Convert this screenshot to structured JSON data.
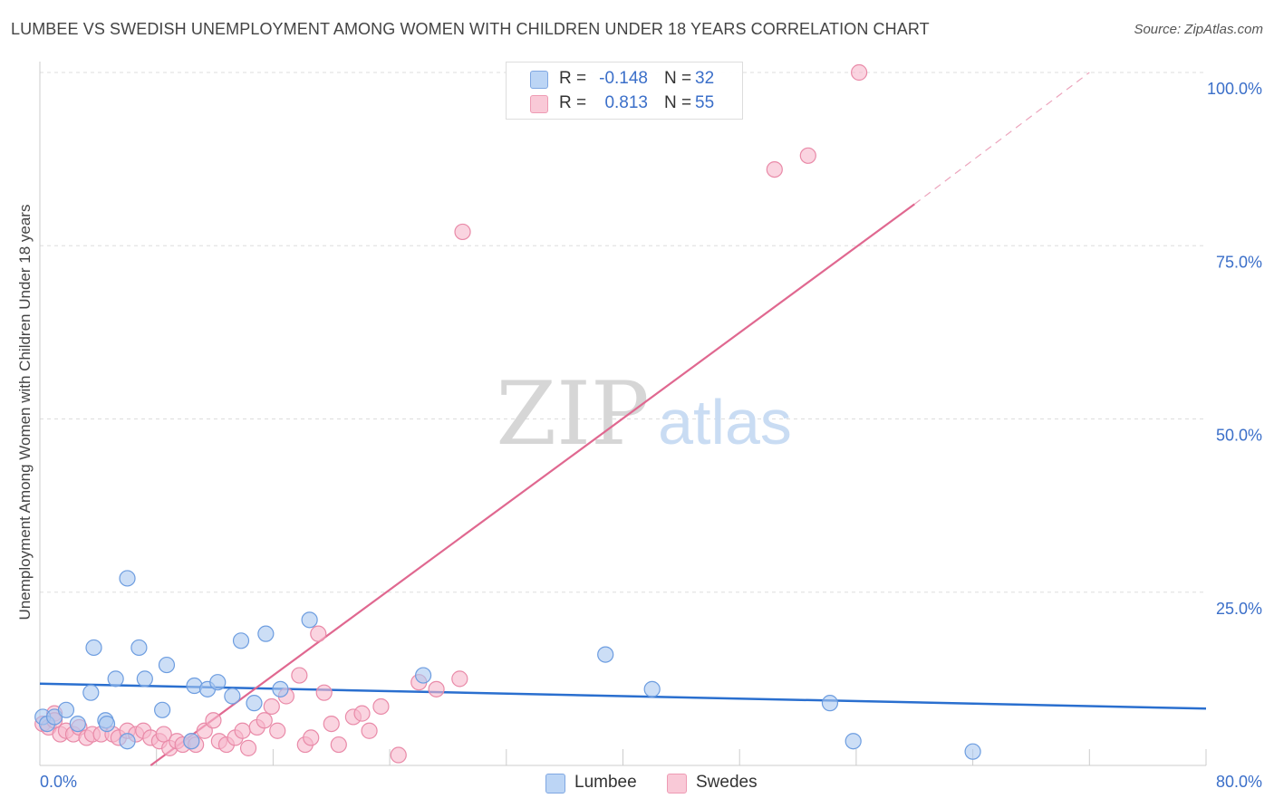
{
  "header": {
    "title": "LUMBEE VS SWEDISH UNEMPLOYMENT AMONG WOMEN WITH CHILDREN UNDER 18 YEARS CORRELATION CHART",
    "source": "Source: ZipAtlas.com"
  },
  "watermark": {
    "zip": "ZIP",
    "atlas": "atlas"
  },
  "legend": {
    "rows": [
      {
        "r_label": "R =",
        "r_value": "-0.148",
        "n_label": "N =",
        "n_value": "32",
        "color": "#aac8f0"
      },
      {
        "r_label": "R =",
        "r_value": "0.813",
        "n_label": "N =",
        "n_value": "55",
        "color": "#f7b8cb"
      }
    ]
  },
  "bottom_legend": {
    "lumbee": "Lumbee",
    "swedes": "Swedes"
  },
  "colors": {
    "lumbee_fill": "#aac8f0",
    "lumbee_stroke": "#6d9de0",
    "lumbee_line": "#2a6fcf",
    "swedes_fill": "#f7b8cb",
    "swedes_stroke": "#e98aa8",
    "swedes_line": "#e06890",
    "axis_text": "#3b6fc9",
    "grid": "#dddddd"
  },
  "chart_data": {
    "type": "scatter",
    "title": "LUMBEE VS SWEDISH UNEMPLOYMENT AMONG WOMEN WITH CHILDREN UNDER 18 YEARS CORRELATION CHART",
    "xlabel": "",
    "ylabel": "Unemployment Among Women with Children Under 18 years",
    "xlim": [
      0,
      80
    ],
    "ylim": [
      0,
      100
    ],
    "x_tick_labels": [
      "0.0%",
      "80.0%"
    ],
    "y_tick_labels": [
      "100.0%",
      "75.0%",
      "50.0%",
      "25.0%"
    ],
    "y_ticks": [
      100,
      75,
      50,
      25
    ],
    "x_gridlines": [
      0,
      8,
      16,
      24,
      32,
      40,
      48,
      56,
      64,
      72,
      80
    ],
    "grid": true,
    "legend_position": "top-center",
    "series": [
      {
        "name": "Lumbee",
        "points": [
          [
            0.2,
            7.0
          ],
          [
            0.5,
            6.0
          ],
          [
            1.0,
            7.0
          ],
          [
            1.8,
            8.0
          ],
          [
            2.6,
            6.0
          ],
          [
            3.5,
            10.5
          ],
          [
            3.7,
            17.0
          ],
          [
            4.5,
            6.5
          ],
          [
            4.6,
            6.0
          ],
          [
            5.2,
            12.5
          ],
          [
            6.0,
            27.0
          ],
          [
            6.8,
            17.0
          ],
          [
            7.2,
            12.5
          ],
          [
            8.4,
            8.0
          ],
          [
            8.7,
            14.5
          ],
          [
            10.6,
            11.5
          ],
          [
            11.5,
            11.0
          ],
          [
            12.2,
            12.0
          ],
          [
            13.2,
            10.0
          ],
          [
            13.8,
            18.0
          ],
          [
            14.7,
            9.0
          ],
          [
            15.5,
            19.0
          ],
          [
            16.5,
            11.0
          ],
          [
            18.5,
            21.0
          ],
          [
            26.3,
            13.0
          ],
          [
            38.8,
            16.0
          ],
          [
            42.0,
            11.0
          ],
          [
            54.2,
            9.0
          ],
          [
            55.8,
            3.5
          ],
          [
            64.0,
            2.0
          ],
          [
            10.4,
            3.5
          ],
          [
            6.0,
            3.5
          ]
        ],
        "trend": {
          "x": [
            0,
            80
          ],
          "y": [
            11.8,
            8.2
          ]
        }
      },
      {
        "name": "Swedes",
        "points": [
          [
            0.2,
            6.0
          ],
          [
            0.6,
            5.5
          ],
          [
            1.0,
            7.5
          ],
          [
            1.4,
            4.5
          ],
          [
            1.8,
            5.0
          ],
          [
            2.3,
            4.5
          ],
          [
            2.7,
            5.5
          ],
          [
            3.2,
            4.0
          ],
          [
            3.6,
            4.5
          ],
          [
            4.2,
            4.5
          ],
          [
            5.0,
            4.5
          ],
          [
            5.4,
            4.0
          ],
          [
            6.0,
            5.0
          ],
          [
            6.6,
            4.5
          ],
          [
            7.1,
            5.0
          ],
          [
            7.6,
            4.0
          ],
          [
            8.2,
            3.5
          ],
          [
            8.5,
            4.5
          ],
          [
            8.9,
            2.5
          ],
          [
            9.4,
            3.5
          ],
          [
            9.8,
            3.0
          ],
          [
            10.4,
            3.5
          ],
          [
            10.7,
            3.0
          ],
          [
            11.3,
            5.0
          ],
          [
            11.9,
            6.5
          ],
          [
            12.3,
            3.5
          ],
          [
            12.8,
            3.0
          ],
          [
            13.4,
            4.0
          ],
          [
            13.9,
            5.0
          ],
          [
            14.3,
            2.5
          ],
          [
            14.9,
            5.5
          ],
          [
            15.4,
            6.5
          ],
          [
            15.9,
            8.5
          ],
          [
            16.3,
            5.0
          ],
          [
            16.9,
            10.0
          ],
          [
            17.8,
            13.0
          ],
          [
            18.2,
            3.0
          ],
          [
            18.6,
            4.0
          ],
          [
            19.1,
            19.0
          ],
          [
            19.5,
            10.5
          ],
          [
            20.0,
            6.0
          ],
          [
            20.5,
            3.0
          ],
          [
            21.5,
            7.0
          ],
          [
            22.1,
            7.5
          ],
          [
            22.6,
            5.0
          ],
          [
            23.4,
            8.5
          ],
          [
            24.6,
            1.5
          ],
          [
            26.0,
            12.0
          ],
          [
            27.2,
            11.0
          ],
          [
            28.8,
            12.5
          ],
          [
            29.0,
            77.0
          ],
          [
            50.4,
            86.0
          ],
          [
            52.7,
            88.0
          ],
          [
            56.2,
            100.0
          ],
          [
            1.0,
            6.5
          ]
        ],
        "trend": {
          "x": [
            7.6,
            60.0
          ],
          "y": [
            -0.5,
            81.0
          ],
          "dashed_extension": {
            "x": [
              60.0,
              72.0
            ],
            "y": [
              81.0,
              100.0
            ]
          }
        }
      }
    ]
  }
}
